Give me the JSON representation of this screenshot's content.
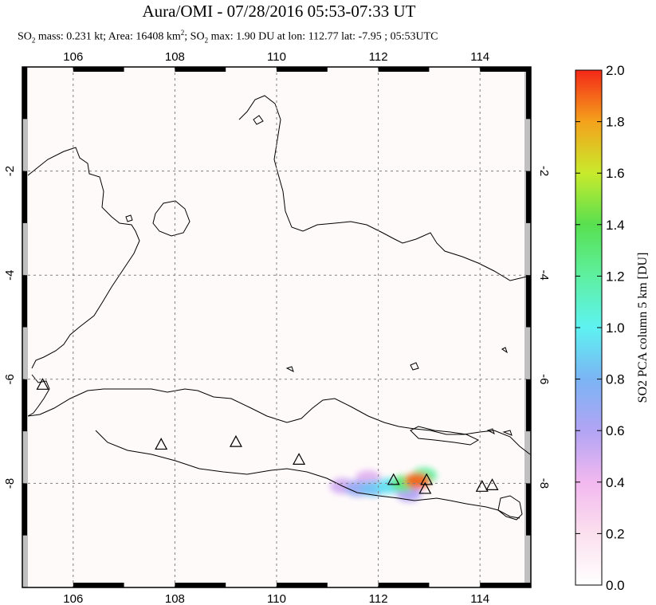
{
  "title": "Aura/OMI - 07/28/2016 05:53-07:33 UT",
  "subtitle": {
    "mass_label": "SO",
    "mass_sub": "2",
    "mass_text": " mass: 0.231 kt; Area: 16408 km",
    "area_sup": "2",
    "max_label": "; SO",
    "max_sub": "2",
    "max_text": " max: 1.90 DU at lon: 112.77 lat: -7.95 ; 05:53UTC"
  },
  "colors": {
    "background": "#fffafa",
    "gridline": "#808080",
    "coast": "#000000",
    "nodata": "#c0c0c0"
  },
  "chart_data": {
    "type": "heatmap",
    "title": "Aura/OMI - 07/28/2016 05:53-07:33 UT",
    "xlim": [
      105.0,
      115.0
    ],
    "ylim": [
      -10.0,
      0.0
    ],
    "x_ticks": [
      106,
      108,
      110,
      112,
      114
    ],
    "x_tick_labels": [
      "106",
      "108",
      "110",
      "112",
      "114"
    ],
    "y_ticks": [
      -2,
      -4,
      -6,
      -8
    ],
    "y_tick_labels": [
      "-2",
      "-4",
      "-6",
      "-8"
    ],
    "grid": true,
    "colorbar": {
      "label": "SO2 PCA column 5 km [DU]",
      "min": 0.0,
      "max": 2.0,
      "ticks": [
        0.0,
        0.2,
        0.4,
        0.6,
        0.8,
        1.0,
        1.2,
        1.4,
        1.6,
        1.8,
        2.0
      ],
      "tick_labels": [
        "0.0",
        "0.2",
        "0.4",
        "0.6",
        "0.8",
        "1.0",
        "1.2",
        "1.4",
        "1.6",
        "1.8",
        "2.0"
      ]
    },
    "so2_plume": [
      {
        "lon": 111.3,
        "lat": -8.05,
        "value": 0.5
      },
      {
        "lon": 111.6,
        "lat": -8.1,
        "value": 0.7
      },
      {
        "lon": 111.9,
        "lat": -8.1,
        "value": 0.85
      },
      {
        "lon": 112.2,
        "lat": -8.05,
        "value": 0.95
      },
      {
        "lon": 112.5,
        "lat": -8.0,
        "value": 1.3
      },
      {
        "lon": 112.77,
        "lat": -7.95,
        "value": 1.9
      },
      {
        "lon": 112.9,
        "lat": -7.85,
        "value": 1.2
      },
      {
        "lon": 112.6,
        "lat": -8.2,
        "value": 0.6
      },
      {
        "lon": 111.8,
        "lat": -7.9,
        "value": 0.45
      }
    ],
    "volcanoes": [
      {
        "lon": 105.4,
        "lat": -6.1
      },
      {
        "lon": 107.73,
        "lat": -7.25
      },
      {
        "lon": 109.2,
        "lat": -7.2
      },
      {
        "lon": 110.44,
        "lat": -7.54
      },
      {
        "lon": 112.3,
        "lat": -7.93
      },
      {
        "lon": 112.95,
        "lat": -7.93
      },
      {
        "lon": 112.92,
        "lat": -8.1
      },
      {
        "lon": 114.04,
        "lat": -8.06
      },
      {
        "lon": 114.24,
        "lat": -8.03
      }
    ]
  }
}
